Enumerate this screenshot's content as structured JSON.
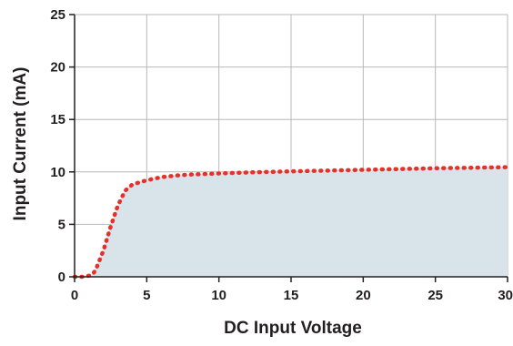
{
  "chart_data": {
    "type": "area",
    "title": "",
    "xlabel": "DC Input Voltage",
    "ylabel": "Input Current (mA)",
    "xlim": [
      0,
      30
    ],
    "ylim": [
      0,
      25
    ],
    "xticks": [
      0,
      5,
      10,
      15,
      20,
      25,
      30
    ],
    "yticks": [
      0,
      5,
      10,
      15,
      20,
      25
    ],
    "grid": true,
    "legend": "none",
    "series": [
      {
        "x": [
          0,
          0.5,
          1,
          1.3,
          1.5,
          2,
          2.5,
          3,
          3.5,
          4,
          4.5,
          5,
          6,
          7,
          8,
          10,
          12,
          15,
          20,
          25,
          30
        ],
        "y": [
          0,
          0,
          0.1,
          0.3,
          0.8,
          2.5,
          4.8,
          6.8,
          8.2,
          8.8,
          9.0,
          9.2,
          9.5,
          9.65,
          9.75,
          9.85,
          9.95,
          10.05,
          10.2,
          10.35,
          10.45
        ]
      }
    ],
    "colors": {
      "line": "#e4322b",
      "fill": "#d8e4ea",
      "grid": "#b8b8b8",
      "axis": "#231f20",
      "text": "#231f20"
    }
  }
}
